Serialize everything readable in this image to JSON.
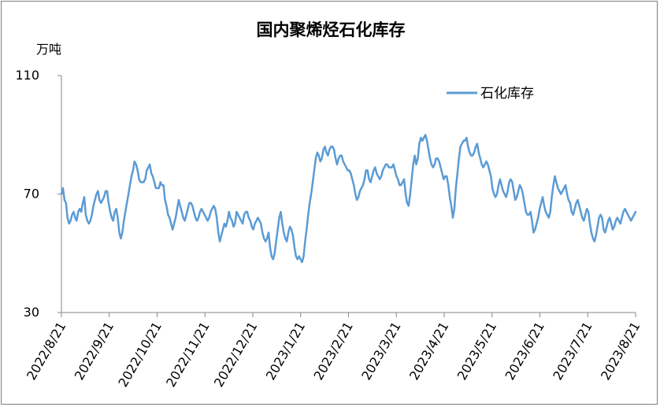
{
  "chart_data": {
    "type": "line",
    "title": "国内聚烯烃石化库存",
    "ylabel": "万吨",
    "xlabel": "",
    "ylim": [
      30,
      110
    ],
    "yticks": [
      30,
      70,
      110
    ],
    "x_tick_labels": [
      "2022/8/21",
      "2022/9/21",
      "2022/10/21",
      "2022/11/21",
      "2022/12/21",
      "2023/1/21",
      "2023/2/21",
      "2023/3/21",
      "2023/4/21",
      "2023/5/21",
      "2023/6/21",
      "2023/7/21",
      "2023/8/21"
    ],
    "legend_position": "top-right",
    "grid": false,
    "series": [
      {
        "name": "石化库存",
        "color": "#5b9bd5",
        "values": [
          70,
          72,
          68,
          67,
          62,
          60,
          61,
          63,
          64,
          62,
          61,
          64,
          65,
          64,
          67,
          69,
          63,
          61,
          60,
          61,
          63,
          66,
          68,
          70,
          71,
          68,
          67,
          68,
          69,
          71,
          71,
          67,
          64,
          62,
          61,
          64,
          65,
          62,
          57,
          55,
          57,
          61,
          64,
          67,
          70,
          73,
          76,
          78,
          81,
          80,
          78,
          75,
          74,
          74,
          74,
          75,
          78,
          79,
          80,
          77,
          76,
          74,
          72,
          72,
          72,
          74,
          73,
          73,
          68,
          66,
          63,
          62,
          60,
          58,
          60,
          62,
          65,
          68,
          66,
          64,
          62,
          61,
          63,
          65,
          67,
          67,
          66,
          64,
          62,
          61,
          62,
          64,
          65,
          64,
          63,
          62,
          61,
          62,
          64,
          65,
          66,
          65,
          62,
          57,
          54,
          56,
          58,
          60,
          59,
          61,
          64,
          62,
          61,
          59,
          60,
          64,
          63,
          62,
          61,
          60,
          63,
          64,
          64,
          62,
          61,
          59,
          58,
          60,
          61,
          62,
          61,
          60,
          57,
          55,
          54,
          55,
          57,
          52,
          49,
          48,
          50,
          54,
          58,
          62,
          64,
          60,
          57,
          55,
          54,
          57,
          59,
          58,
          56,
          52,
          49,
          48,
          49,
          48,
          47,
          49,
          54,
          58,
          63,
          67,
          70,
          74,
          78,
          82,
          84,
          83,
          81,
          82,
          85,
          86,
          84,
          83,
          85,
          86,
          86,
          85,
          82,
          80,
          82,
          83,
          83,
          81,
          80,
          79,
          78,
          78,
          77,
          75,
          73,
          70,
          68,
          69,
          71,
          72,
          73,
          75,
          78,
          78,
          75,
          74,
          76,
          78,
          79,
          77,
          76,
          75,
          76,
          78,
          79,
          80,
          80,
          79,
          79,
          79,
          80,
          78,
          76,
          75,
          73,
          73,
          74,
          75,
          70,
          67,
          66,
          70,
          75,
          80,
          83,
          80,
          82,
          87,
          89,
          88,
          89,
          90,
          88,
          85,
          82,
          80,
          79,
          80,
          82,
          82,
          81,
          79,
          77,
          75,
          76,
          76,
          73,
          69,
          66,
          62,
          65,
          72,
          77,
          82,
          86,
          87,
          88,
          88,
          89,
          86,
          84,
          83,
          83,
          84,
          86,
          87,
          84,
          82,
          80,
          79,
          80,
          81,
          80,
          78,
          76,
          72,
          70,
          69,
          70,
          73,
          75,
          73,
          71,
          70,
          69,
          71,
          74,
          75,
          74,
          71,
          68,
          69,
          71,
          73,
          72,
          70,
          67,
          64,
          63,
          63,
          64,
          61,
          57,
          58,
          60,
          62,
          65,
          67,
          69,
          66,
          64,
          63,
          62,
          64,
          69,
          73,
          76,
          74,
          72,
          71,
          70,
          71,
          72,
          73,
          70,
          68,
          67,
          64,
          63,
          65,
          67,
          68,
          66,
          64,
          62,
          61,
          63,
          65,
          64,
          60,
          57,
          55,
          54,
          56,
          59,
          62,
          63,
          62,
          58,
          57,
          59,
          61,
          62,
          60,
          58,
          59,
          61,
          62,
          61,
          60,
          62,
          64,
          65,
          64,
          63,
          62,
          61,
          62,
          63,
          64
        ]
      }
    ]
  }
}
